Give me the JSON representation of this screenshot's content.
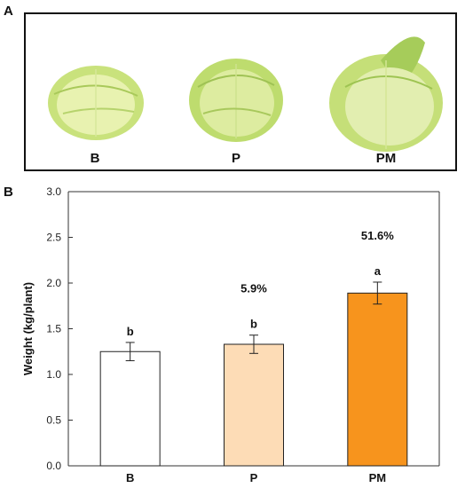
{
  "panels": {
    "photo_letter": "A",
    "chart_letter": "B"
  },
  "photos": [
    {
      "label": "B",
      "icon": "cabbage-small"
    },
    {
      "label": "P",
      "icon": "cabbage-small"
    },
    {
      "label": "PM",
      "icon": "cabbage-large"
    }
  ],
  "colors": {
    "B": "#ffffff",
    "P": "#fddcb6",
    "PM": "#f7941d",
    "axis": "#333333",
    "cabbage_outer": "#c9e27c",
    "cabbage_inner": "#e8f2b0"
  },
  "chart_data": {
    "type": "bar",
    "ylabel": "Weight (kg/plant)",
    "xlabel": "",
    "ylim": [
      0,
      3.0
    ],
    "yticks": [
      "0.0",
      "0.5",
      "1.0",
      "1.5",
      "2.0",
      "2.5",
      "3.0"
    ],
    "categories": [
      "B",
      "P",
      "PM"
    ],
    "values": [
      1.25,
      1.33,
      1.89
    ],
    "errors": [
      0.1,
      0.1,
      0.12
    ],
    "letters": [
      "b",
      "b",
      "a"
    ],
    "increase_labels": [
      "",
      "5.9%",
      "51.6%"
    ],
    "grid": false
  }
}
